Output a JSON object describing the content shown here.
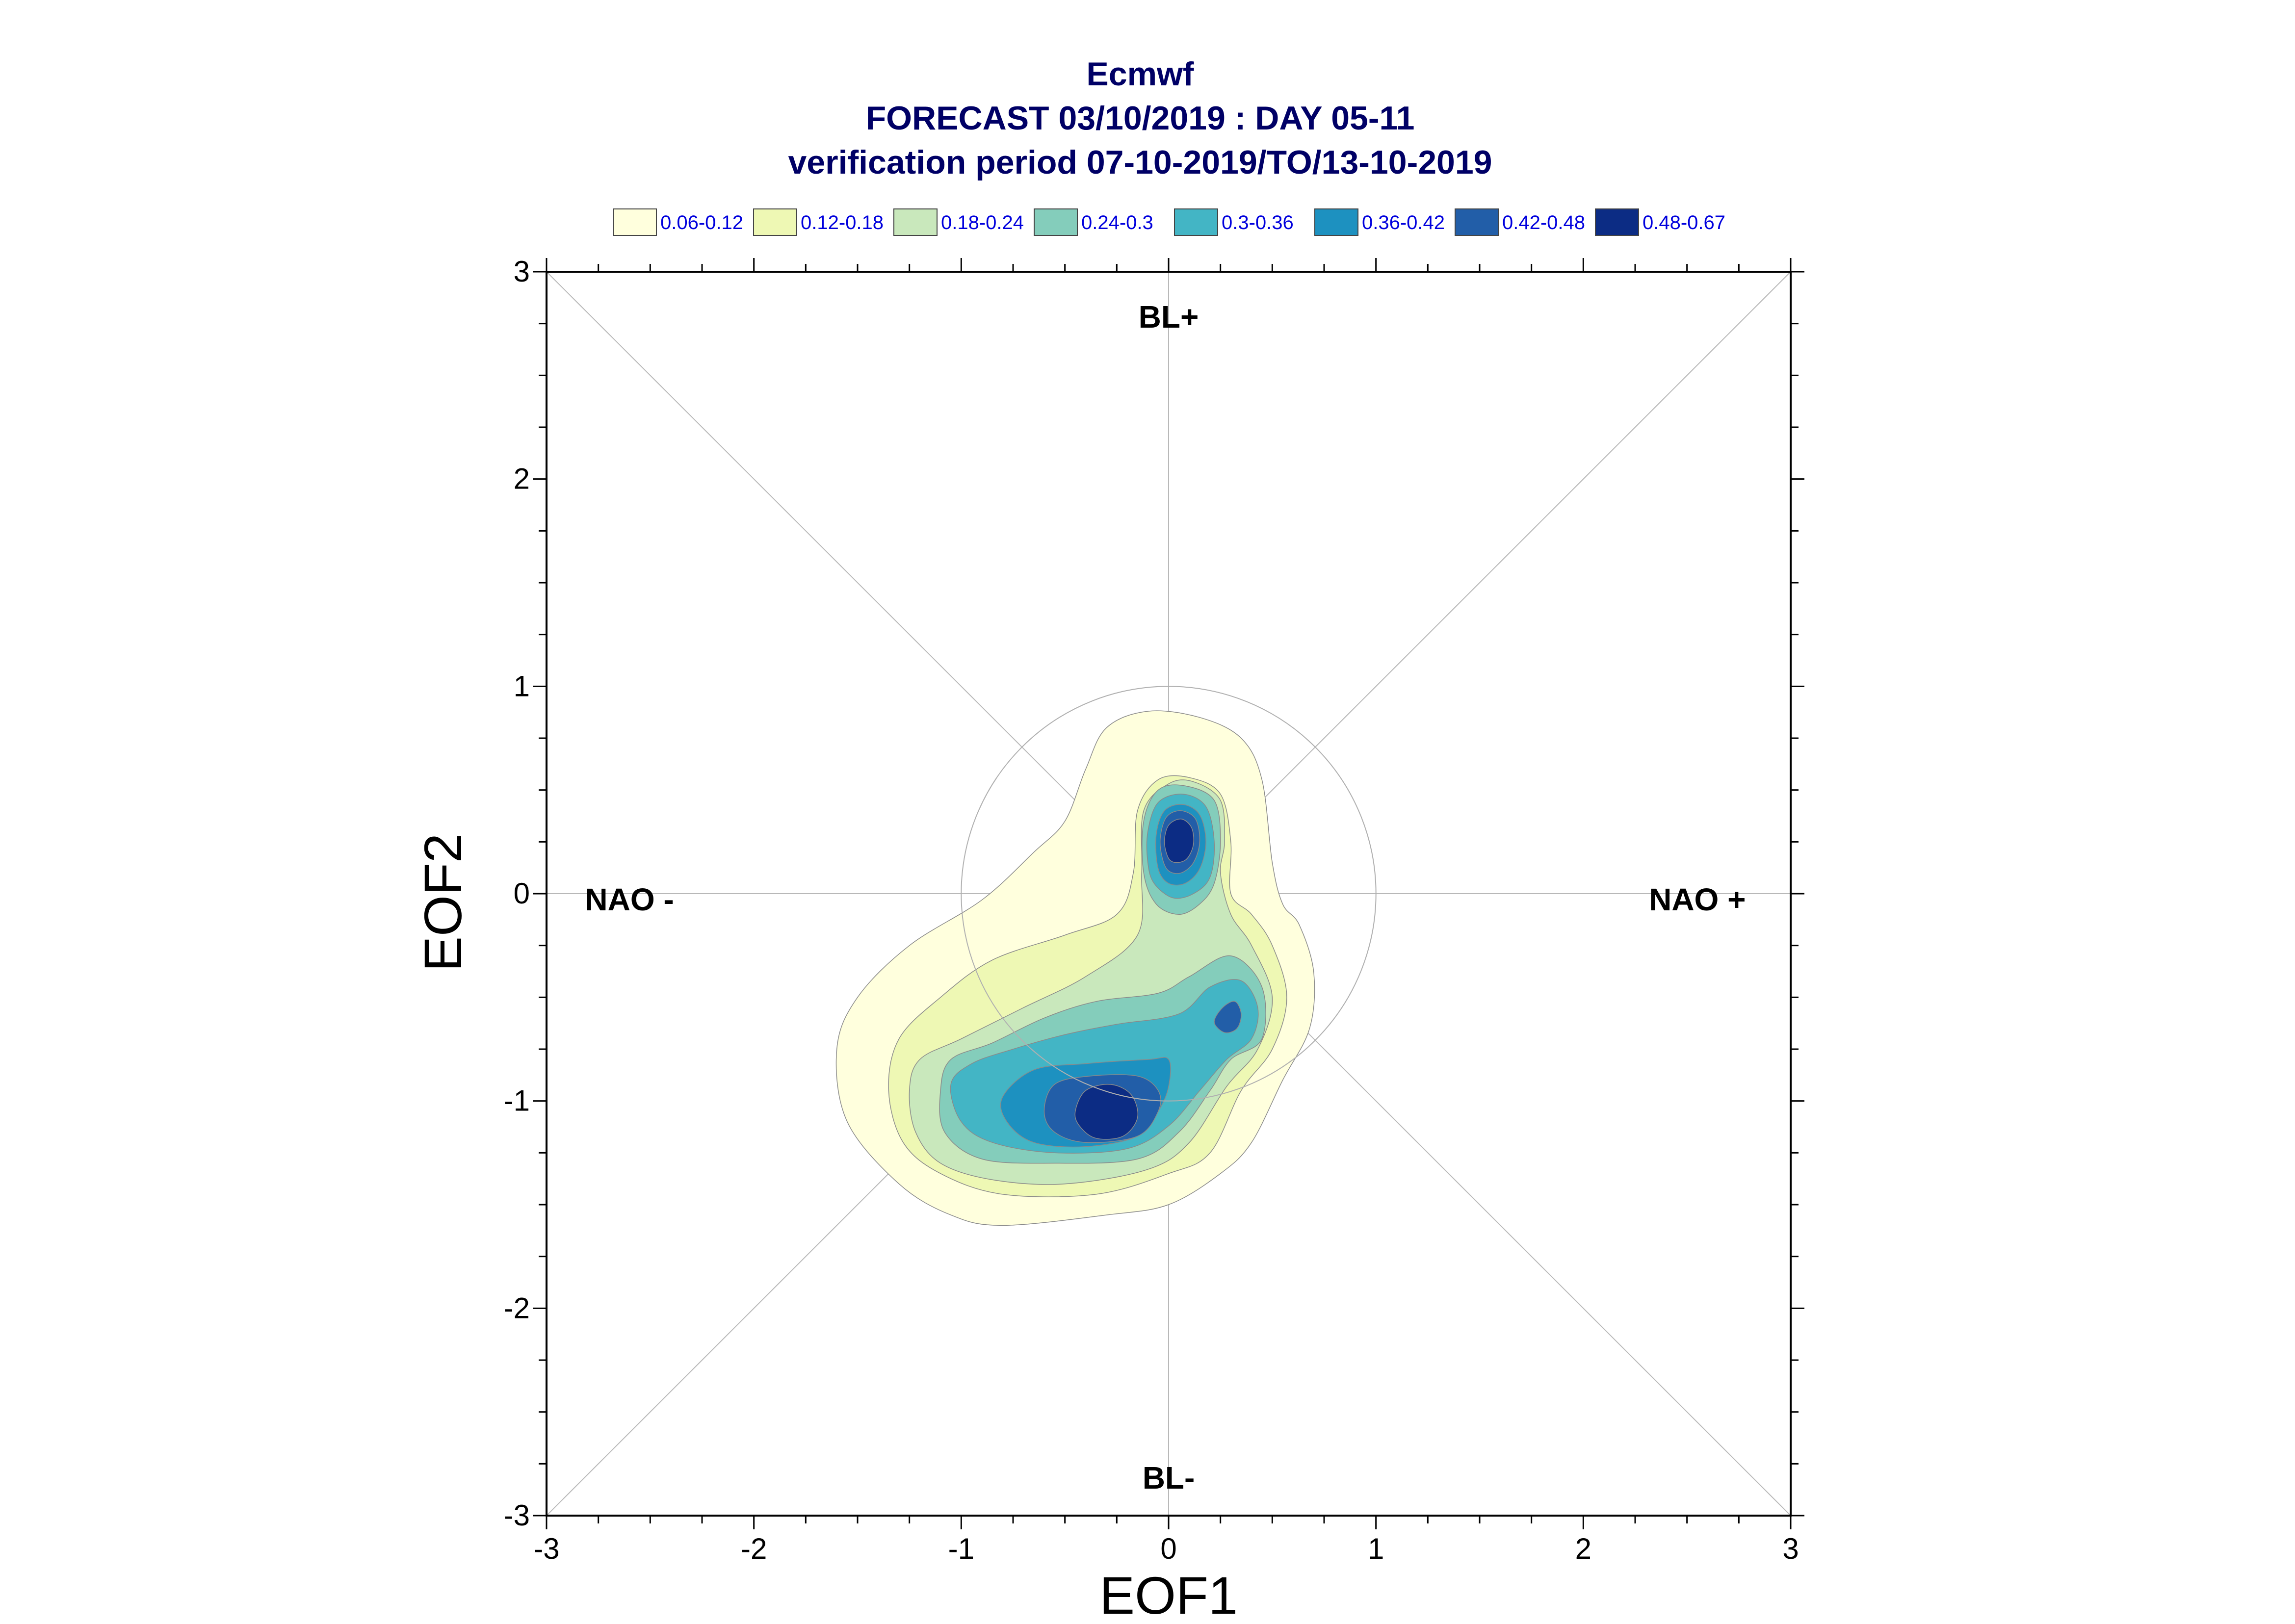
{
  "chart_data": {
    "type": "contour",
    "title": "Ecmwf",
    "subtitle_1": "FORECAST 03/10/2019 : DAY 05-11",
    "subtitle_2": "verification period 07-10-2019/TO/13-10-2019",
    "xlabel": "EOF1",
    "ylabel": "EOF2",
    "xlim": [
      -3,
      3
    ],
    "ylim": [
      -3,
      3
    ],
    "xticks": [
      -3,
      -2,
      -1,
      0,
      1,
      2,
      3
    ],
    "yticks": [
      -3,
      -2,
      -1,
      0,
      1,
      2,
      3
    ],
    "grid": false,
    "reference_circle_radius": 1,
    "regime_labels": [
      {
        "text": "BL+",
        "x": 0,
        "y": 2.73
      },
      {
        "text": "BL-",
        "x": 0,
        "y": -2.87
      },
      {
        "text": "NAO -",
        "x": -2.6,
        "y": -0.08
      },
      {
        "text": "NAO +",
        "x": 2.55,
        "y": -0.08
      }
    ],
    "legend": {
      "placement": "top",
      "levels": [
        {
          "label": "0.06-0.12",
          "color": "#ffffdd"
        },
        {
          "label": "0.12-0.18",
          "color": "#eef8b4"
        },
        {
          "label": "0.18-0.24",
          "color": "#c9e8bc"
        },
        {
          "label": "0.24-0.3",
          "color": "#84cdbb"
        },
        {
          "label": "0.3-0.36",
          "color": "#43b5c5"
        },
        {
          "label": "0.36-0.42",
          "color": "#1d91c0"
        },
        {
          "label": "0.42-0.48",
          "color": "#225ea8"
        },
        {
          "label": "0.48-0.67",
          "color": "#0c2c84"
        }
      ]
    },
    "contours": [
      {
        "level": 0,
        "polygons": [
          [
            [
              -1.6,
              -0.75
            ],
            [
              -1.5,
              -0.5
            ],
            [
              -1.25,
              -0.25
            ],
            [
              -0.9,
              -0.03
            ],
            [
              -0.65,
              0.2
            ],
            [
              -0.5,
              0.35
            ],
            [
              -0.4,
              0.6
            ],
            [
              -0.3,
              0.8
            ],
            [
              -0.1,
              0.88
            ],
            [
              0.15,
              0.85
            ],
            [
              0.35,
              0.75
            ],
            [
              0.45,
              0.55
            ],
            [
              0.5,
              0.15
            ],
            [
              0.55,
              -0.05
            ],
            [
              0.63,
              -0.15
            ],
            [
              0.7,
              -0.38
            ],
            [
              0.68,
              -0.65
            ],
            [
              0.55,
              -0.9
            ],
            [
              0.4,
              -1.2
            ],
            [
              0.25,
              -1.35
            ],
            [
              0.0,
              -1.5
            ],
            [
              -0.3,
              -1.55
            ],
            [
              -0.8,
              -1.6
            ],
            [
              -1.05,
              -1.55
            ],
            [
              -1.3,
              -1.4
            ],
            [
              -1.55,
              -1.1
            ]
          ]
        ]
      },
      {
        "level": 1,
        "polygons": [
          [
            [
              -1.35,
              -0.95
            ],
            [
              -1.3,
              -0.7
            ],
            [
              -1.1,
              -0.5
            ],
            [
              -0.85,
              -0.32
            ],
            [
              -0.5,
              -0.2
            ],
            [
              -0.25,
              -0.1
            ],
            [
              -0.17,
              0.1
            ],
            [
              -0.15,
              0.4
            ],
            [
              -0.05,
              0.55
            ],
            [
              0.1,
              0.56
            ],
            [
              0.25,
              0.48
            ],
            [
              0.3,
              0.25
            ],
            [
              0.3,
              0.0
            ],
            [
              0.4,
              -0.1
            ],
            [
              0.5,
              -0.25
            ],
            [
              0.57,
              -0.5
            ],
            [
              0.5,
              -0.75
            ],
            [
              0.35,
              -0.95
            ],
            [
              0.2,
              -1.25
            ],
            [
              0.0,
              -1.35
            ],
            [
              -0.35,
              -1.45
            ],
            [
              -0.8,
              -1.45
            ],
            [
              -1.1,
              -1.35
            ],
            [
              -1.28,
              -1.2
            ]
          ]
        ]
      },
      {
        "level": 2,
        "polygons": [
          [
            [
              -1.25,
              -0.95
            ],
            [
              -1.2,
              -0.8
            ],
            [
              -1.0,
              -0.7
            ],
            [
              -0.7,
              -0.55
            ],
            [
              -0.4,
              -0.4
            ],
            [
              -0.15,
              -0.2
            ],
            [
              -0.13,
              0.1
            ],
            [
              -0.12,
              0.4
            ],
            [
              0.0,
              0.53
            ],
            [
              0.12,
              0.54
            ],
            [
              0.25,
              0.45
            ],
            [
              0.27,
              0.25
            ],
            [
              0.25,
              0.1
            ],
            [
              0.3,
              -0.1
            ],
            [
              0.4,
              -0.25
            ],
            [
              0.5,
              -0.5
            ],
            [
              0.43,
              -0.75
            ],
            [
              0.28,
              -0.93
            ],
            [
              0.1,
              -1.2
            ],
            [
              -0.1,
              -1.33
            ],
            [
              -0.5,
              -1.4
            ],
            [
              -0.85,
              -1.38
            ],
            [
              -1.1,
              -1.3
            ],
            [
              -1.22,
              -1.15
            ]
          ]
        ]
      },
      {
        "level": 3,
        "polygons": [
          [
            [
              -1.1,
              -0.95
            ],
            [
              -1.05,
              -0.8
            ],
            [
              -0.85,
              -0.72
            ],
            [
              -0.6,
              -0.6
            ],
            [
              -0.35,
              -0.52
            ],
            [
              -0.05,
              -0.48
            ],
            [
              0.1,
              -0.4
            ],
            [
              0.3,
              -0.3
            ],
            [
              0.45,
              -0.45
            ],
            [
              0.45,
              -0.7
            ],
            [
              0.3,
              -0.8
            ],
            [
              0.2,
              -0.95
            ],
            [
              0.05,
              -1.15
            ],
            [
              -0.15,
              -1.28
            ],
            [
              -0.55,
              -1.3
            ],
            [
              -0.9,
              -1.28
            ],
            [
              -1.08,
              -1.15
            ]
          ],
          [
            [
              -0.12,
              0.35
            ],
            [
              -0.05,
              0.5
            ],
            [
              0.08,
              0.52
            ],
            [
              0.22,
              0.45
            ],
            [
              0.25,
              0.25
            ],
            [
              0.22,
              0.05
            ],
            [
              0.15,
              -0.05
            ],
            [
              0.05,
              -0.1
            ],
            [
              -0.06,
              -0.05
            ],
            [
              -0.12,
              0.1
            ]
          ]
        ]
      },
      {
        "level": 4,
        "polygons": [
          [
            [
              -1.05,
              -0.92
            ],
            [
              -0.95,
              -0.82
            ],
            [
              -0.75,
              -0.75
            ],
            [
              -0.5,
              -0.68
            ],
            [
              -0.25,
              -0.63
            ],
            [
              0.05,
              -0.58
            ],
            [
              0.2,
              -0.45
            ],
            [
              0.35,
              -0.42
            ],
            [
              0.43,
              -0.55
            ],
            [
              0.4,
              -0.7
            ],
            [
              0.28,
              -0.8
            ],
            [
              0.15,
              -0.95
            ],
            [
              0.0,
              -1.12
            ],
            [
              -0.2,
              -1.23
            ],
            [
              -0.55,
              -1.25
            ],
            [
              -0.85,
              -1.2
            ],
            [
              -1.0,
              -1.1
            ]
          ],
          [
            [
              -0.1,
              0.3
            ],
            [
              -0.05,
              0.44
            ],
            [
              0.07,
              0.48
            ],
            [
              0.18,
              0.42
            ],
            [
              0.22,
              0.25
            ],
            [
              0.2,
              0.08
            ],
            [
              0.12,
              0.0
            ],
            [
              0.02,
              -0.02
            ],
            [
              -0.07,
              0.05
            ],
            [
              -0.1,
              0.15
            ]
          ]
        ]
      },
      {
        "level": 5,
        "polygons": [
          [
            [
              -0.8,
              -0.98
            ],
            [
              -0.65,
              -0.85
            ],
            [
              -0.4,
              -0.82
            ],
            [
              -0.1,
              -0.8
            ],
            [
              0.0,
              -0.8
            ],
            [
              0.0,
              -0.93
            ],
            [
              -0.05,
              -1.05
            ],
            [
              -0.15,
              -1.17
            ],
            [
              -0.4,
              -1.22
            ],
            [
              -0.65,
              -1.2
            ],
            [
              -0.78,
              -1.1
            ]
          ],
          [
            [
              -0.06,
              0.28
            ],
            [
              -0.02,
              0.4
            ],
            [
              0.07,
              0.43
            ],
            [
              0.15,
              0.38
            ],
            [
              0.18,
              0.25
            ],
            [
              0.15,
              0.12
            ],
            [
              0.08,
              0.05
            ],
            [
              0.0,
              0.05
            ],
            [
              -0.05,
              0.12
            ]
          ]
        ]
      },
      {
        "level": 6,
        "polygons": [
          [
            [
              -0.6,
              -1.05
            ],
            [
              -0.55,
              -0.92
            ],
            [
              -0.38,
              -0.88
            ],
            [
              -0.15,
              -0.88
            ],
            [
              -0.05,
              -0.95
            ],
            [
              -0.05,
              -1.05
            ],
            [
              -0.15,
              -1.17
            ],
            [
              -0.4,
              -1.2
            ],
            [
              -0.55,
              -1.15
            ]
          ],
          [
            [
              -0.04,
              0.27
            ],
            [
              -0.01,
              0.37
            ],
            [
              0.06,
              0.4
            ],
            [
              0.13,
              0.36
            ],
            [
              0.15,
              0.25
            ],
            [
              0.12,
              0.15
            ],
            [
              0.06,
              0.1
            ],
            [
              0.0,
              0.11
            ],
            [
              -0.03,
              0.17
            ]
          ],
          [
            [
              0.22,
              -0.62
            ],
            [
              0.26,
              -0.55
            ],
            [
              0.32,
              -0.52
            ],
            [
              0.35,
              -0.58
            ],
            [
              0.33,
              -0.65
            ],
            [
              0.27,
              -0.67
            ]
          ]
        ]
      },
      {
        "level": 7,
        "polygons": [
          [
            [
              -0.45,
              -1.05
            ],
            [
              -0.4,
              -0.95
            ],
            [
              -0.28,
              -0.92
            ],
            [
              -0.18,
              -0.97
            ],
            [
              -0.15,
              -1.08
            ],
            [
              -0.22,
              -1.17
            ],
            [
              -0.35,
              -1.18
            ],
            [
              -0.43,
              -1.12
            ]
          ],
          [
            [
              -0.02,
              0.25
            ],
            [
              0.0,
              0.33
            ],
            [
              0.06,
              0.36
            ],
            [
              0.11,
              0.32
            ],
            [
              0.12,
              0.24
            ],
            [
              0.09,
              0.17
            ],
            [
              0.04,
              0.15
            ],
            [
              0.0,
              0.17
            ]
          ]
        ]
      }
    ]
  }
}
